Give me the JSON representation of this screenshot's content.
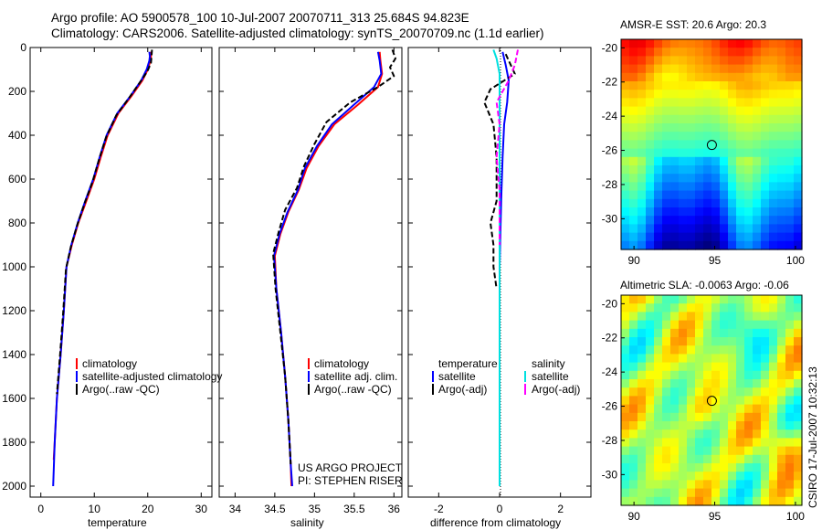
{
  "figure": {
    "title_line1": "Argo profile: AO 5900578_100 10-Jul-2007 20070711_313 25.684S 94.823E",
    "title_line2": "Climatology: CARS2006. Satellite-adjusted climatology: synTS_20070709.nc (1.1d earlier)",
    "side_label": "CSIRO 17-Jul-2007 10:32:13",
    "project_line1": "US ARGO PROJECT",
    "project_line2": "PI: STEPHEN RISER"
  },
  "colors": {
    "climatology": "#ff0000",
    "satellite": "#0000ff",
    "argo": "#000000",
    "sat_diff": "#00e0e0",
    "argo_diff": "#ff00ff"
  },
  "legends": {
    "temperature": [
      "climatology",
      "satellite-adjusted climatology",
      "Argo(..raw -QC)"
    ],
    "salinity": [
      "climatology",
      "satellite adj. clim.",
      "Argo(..raw -QC)"
    ],
    "diff_temperature": [
      "temperature",
      "satellite",
      "Argo(-adj)"
    ],
    "diff_salinity": [
      "salinity",
      "satellite",
      "Argo(-adj)"
    ]
  },
  "chart_data": [
    {
      "id": "temperature",
      "type": "line",
      "xlabel": "temperature",
      "xlim": [
        -2,
        32
      ],
      "ylim": [
        2050,
        0
      ],
      "xticks": [
        0,
        10,
        20,
        30
      ],
      "yticks": [
        0,
        200,
        400,
        600,
        800,
        1000,
        1200,
        1400,
        1600,
        1800,
        2000
      ],
      "series": [
        {
          "name": "climatology",
          "color": "#ff0000",
          "dash": "",
          "points": [
            [
              20.5,
              20
            ],
            [
              20.6,
              40
            ],
            [
              20.5,
              60
            ],
            [
              20.0,
              100
            ],
            [
              19.0,
              150
            ],
            [
              17.0,
              220
            ],
            [
              14.5,
              300
            ],
            [
              12.5,
              400
            ],
            [
              11.2,
              500
            ],
            [
              10.0,
              600
            ],
            [
              8.5,
              700
            ],
            [
              7.0,
              800
            ],
            [
              5.8,
              900
            ],
            [
              4.8,
              1000
            ],
            [
              4.3,
              1200
            ],
            [
              3.7,
              1400
            ],
            [
              3.0,
              1600
            ],
            [
              2.6,
              1800
            ],
            [
              2.4,
              1880
            ]
          ]
        },
        {
          "name": "satellite",
          "color": "#0000ff",
          "dash": "",
          "points": [
            [
              20.3,
              20
            ],
            [
              20.4,
              40
            ],
            [
              20.3,
              60
            ],
            [
              19.8,
              100
            ],
            [
              18.8,
              150
            ],
            [
              16.8,
              220
            ],
            [
              14.3,
              300
            ],
            [
              12.3,
              400
            ],
            [
              11.0,
              500
            ],
            [
              9.8,
              600
            ],
            [
              8.3,
              700
            ],
            [
              6.9,
              800
            ],
            [
              5.7,
              900
            ],
            [
              4.8,
              1000
            ],
            [
              4.3,
              1200
            ],
            [
              3.7,
              1400
            ],
            [
              3.0,
              1600
            ],
            [
              2.6,
              1800
            ],
            [
              2.3,
              2000
            ]
          ]
        },
        {
          "name": "Argo",
          "color": "#000000",
          "dash": "6,3",
          "points": [
            [
              20.8,
              10
            ],
            [
              20.7,
              40
            ],
            [
              20.6,
              70
            ],
            [
              19.9,
              110
            ],
            [
              18.5,
              160
            ],
            [
              16.5,
              230
            ],
            [
              14.1,
              310
            ],
            [
              12.2,
              410
            ],
            [
              10.9,
              510
            ],
            [
              9.7,
              610
            ],
            [
              8.2,
              710
            ],
            [
              6.8,
              810
            ],
            [
              5.6,
              910
            ],
            [
              4.7,
              1010
            ],
            [
              4.2,
              1200
            ],
            [
              3.6,
              1400
            ],
            [
              3.0,
              1580
            ]
          ]
        }
      ]
    },
    {
      "id": "salinity",
      "type": "line",
      "xlabel": "salinity",
      "xlim": [
        33.8,
        36.1
      ],
      "ylim": [
        2050,
        0
      ],
      "xticks": [
        34,
        34.5,
        35,
        35.5,
        36
      ],
      "yticks": [
        0,
        200,
        400,
        600,
        800,
        1000,
        1200,
        1400,
        1600,
        1800,
        2000
      ],
      "series": [
        {
          "name": "climatology",
          "color": "#ff0000",
          "dash": "",
          "points": [
            [
              35.82,
              20
            ],
            [
              35.83,
              60
            ],
            [
              35.85,
              120
            ],
            [
              35.8,
              180
            ],
            [
              35.55,
              260
            ],
            [
              35.25,
              350
            ],
            [
              35.05,
              450
            ],
            [
              34.9,
              550
            ],
            [
              34.8,
              650
            ],
            [
              34.67,
              750
            ],
            [
              34.57,
              850
            ],
            [
              34.5,
              950
            ],
            [
              34.52,
              1100
            ],
            [
              34.58,
              1300
            ],
            [
              34.63,
              1500
            ],
            [
              34.67,
              1700
            ],
            [
              34.7,
              1900
            ],
            [
              34.71,
              2000
            ]
          ]
        },
        {
          "name": "satellite",
          "color": "#0000ff",
          "dash": "",
          "points": [
            [
              35.8,
              20
            ],
            [
              35.82,
              60
            ],
            [
              35.84,
              120
            ],
            [
              35.75,
              180
            ],
            [
              35.5,
              260
            ],
            [
              35.22,
              350
            ],
            [
              35.03,
              450
            ],
            [
              34.88,
              550
            ],
            [
              34.79,
              650
            ],
            [
              34.66,
              750
            ],
            [
              34.56,
              850
            ],
            [
              34.49,
              950
            ],
            [
              34.52,
              1100
            ],
            [
              34.58,
              1300
            ],
            [
              34.63,
              1500
            ],
            [
              34.67,
              1700
            ],
            [
              34.7,
              1900
            ],
            [
              34.72,
              2000
            ]
          ]
        },
        {
          "name": "Argo",
          "color": "#000000",
          "dash": "6,3",
          "points": [
            [
              35.98,
              10
            ],
            [
              36.02,
              50
            ],
            [
              35.95,
              90
            ],
            [
              36.0,
              130
            ],
            [
              35.8,
              180
            ],
            [
              35.45,
              250
            ],
            [
              35.15,
              340
            ],
            [
              35.0,
              440
            ],
            [
              34.87,
              540
            ],
            [
              34.78,
              640
            ],
            [
              34.63,
              740
            ],
            [
              34.55,
              840
            ],
            [
              34.48,
              940
            ],
            [
              34.51,
              1100
            ],
            [
              34.57,
              1300
            ],
            [
              34.63,
              1500
            ],
            [
              34.67,
              1700
            ],
            [
              34.7,
              1900
            ]
          ]
        }
      ]
    },
    {
      "id": "difference",
      "type": "line",
      "xlabel": "difference from climatology",
      "xlim": [
        -3,
        3
      ],
      "ylim": [
        2050,
        0
      ],
      "xticks": [
        -2,
        0,
        2
      ],
      "yticks": [
        0,
        200,
        400,
        600,
        800,
        1000,
        1200,
        1400,
        1600,
        1800,
        2000
      ],
      "series": [
        {
          "name": "temperature satellite",
          "color": "#0000ff",
          "dash": "",
          "points": [
            [
              0.1,
              20
            ],
            [
              0.2,
              80
            ],
            [
              0.3,
              150
            ],
            [
              0.25,
              250
            ],
            [
              0.15,
              350
            ],
            [
              0.1,
              500
            ],
            [
              0.05,
              700
            ],
            [
              0,
              1000
            ],
            [
              0,
              2000
            ]
          ]
        },
        {
          "name": "temperature Argo(-adj)",
          "color": "#000000",
          "dash": "6,3",
          "points": [
            [
              0.2,
              30
            ],
            [
              0.5,
              120
            ],
            [
              -0.3,
              190
            ],
            [
              -0.5,
              250
            ],
            [
              -0.2,
              350
            ],
            [
              -0.1,
              500
            ],
            [
              -0.1,
              700
            ],
            [
              -0.3,
              800
            ],
            [
              -0.2,
              900
            ],
            [
              -0.2,
              1000
            ],
            [
              -0.1,
              1100
            ]
          ]
        },
        {
          "name": "salinity satellite",
          "color": "#00e0e0",
          "dash": "",
          "points": [
            [
              -0.2,
              10
            ],
            [
              -0.1,
              50
            ],
            [
              0,
              120
            ],
            [
              0,
              300
            ],
            [
              0,
              600
            ],
            [
              0,
              1000
            ],
            [
              0,
              2000
            ]
          ]
        },
        {
          "name": "salinity Argo(-adj)",
          "color": "#ff00ff",
          "dash": "6,3",
          "points": [
            [
              0.6,
              10
            ],
            [
              0.5,
              80
            ],
            [
              0.3,
              150
            ],
            [
              -0.1,
              250
            ],
            [
              0,
              350
            ],
            [
              -0.1,
              500
            ],
            [
              0,
              650
            ],
            [
              0,
              800
            ],
            [
              0,
              900
            ]
          ]
        }
      ]
    },
    {
      "id": "sst_map",
      "type": "heatmap",
      "title": "AMSR-E SST: 20.6  Argo: 20.3",
      "xlim": [
        89.2,
        100.4
      ],
      "ylim": [
        -31.8,
        -19.5
      ],
      "xticks": [
        90,
        95,
        100
      ],
      "yticks": [
        -20,
        -22,
        -24,
        -26,
        -28,
        -30
      ],
      "marker": [
        94.823,
        -25.684
      ]
    },
    {
      "id": "sla_map",
      "type": "heatmap",
      "title": "Altimetric SLA: -0.0063  Argo: -0.06",
      "xlim": [
        89.2,
        100.4
      ],
      "ylim": [
        -31.8,
        -19.5
      ],
      "xticks": [
        90,
        95,
        100
      ],
      "yticks": [
        -20,
        -22,
        -24,
        -26,
        -28,
        -30
      ],
      "marker": [
        94.823,
        -25.684
      ]
    }
  ]
}
